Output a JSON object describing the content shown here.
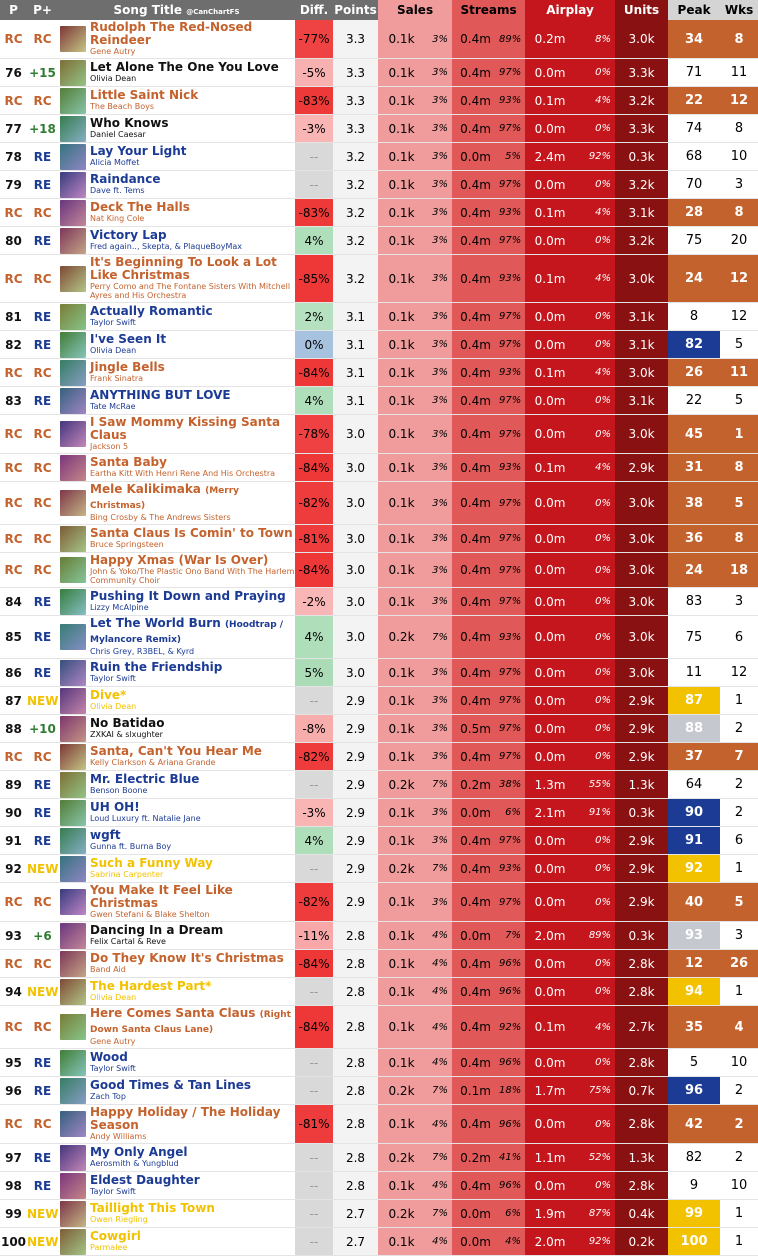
{
  "header": {
    "p": "P",
    "pp": "P+",
    "title": "Song Title",
    "handle": "@CanChartFS",
    "diff": "Diff.",
    "points": "Points",
    "sales": "Sales",
    "streams": "Streams",
    "airplay": "Airplay",
    "units": "Units",
    "peak": "Peak",
    "wks": "Wks"
  },
  "rows": [
    {
      "p": "RC",
      "pp": "RC",
      "title": "Rudolph The Red-Nosed Reindeer",
      "artist": "Gene Autry",
      "diff": "-77%",
      "pts": "3.3",
      "s": "0.1k",
      "sp": "3%",
      "st": "0.4m",
      "stp": "89%",
      "a": "0.2m",
      "ap": "8%",
      "u": "3.0k",
      "pk": "34",
      "wk": "8"
    },
    {
      "p": "76",
      "pp": "+15",
      "title": "Let Alone The One You Love",
      "artist": "Olivia Dean",
      "diff": "-5%",
      "pts": "3.3",
      "s": "0.1k",
      "sp": "3%",
      "st": "0.4m",
      "stp": "97%",
      "a": "0.0m",
      "ap": "0%",
      "u": "3.3k",
      "pk": "71",
      "wk": "11"
    },
    {
      "p": "RC",
      "pp": "RC",
      "title": "Little Saint Nick",
      "artist": "The Beach Boys",
      "diff": "-83%",
      "pts": "3.3",
      "s": "0.1k",
      "sp": "3%",
      "st": "0.4m",
      "stp": "93%",
      "a": "0.1m",
      "ap": "4%",
      "u": "3.2k",
      "pk": "22",
      "wk": "12"
    },
    {
      "p": "77",
      "pp": "+18",
      "title": "Who Knows",
      "artist": "Daniel Caesar",
      "diff": "-3%",
      "pts": "3.3",
      "s": "0.1k",
      "sp": "3%",
      "st": "0.4m",
      "stp": "97%",
      "a": "0.0m",
      "ap": "0%",
      "u": "3.3k",
      "pk": "74",
      "wk": "8"
    },
    {
      "p": "78",
      "pp": "RE",
      "title": "Lay Your Light",
      "artist": "Alicia Moffet",
      "diff": "--",
      "pts": "3.2",
      "s": "0.1k",
      "sp": "3%",
      "st": "0.0m",
      "stp": "5%",
      "a": "2.4m",
      "ap": "92%",
      "u": "0.3k",
      "pk": "68",
      "wk": "10"
    },
    {
      "p": "79",
      "pp": "RE",
      "title": "Raindance",
      "artist": "Dave ft. Tems",
      "diff": "--",
      "pts": "3.2",
      "s": "0.1k",
      "sp": "3%",
      "st": "0.4m",
      "stp": "97%",
      "a": "0.0m",
      "ap": "0%",
      "u": "3.2k",
      "pk": "70",
      "wk": "3"
    },
    {
      "p": "RC",
      "pp": "RC",
      "title": "Deck The Halls",
      "artist": "Nat King Cole",
      "diff": "-83%",
      "pts": "3.2",
      "s": "0.1k",
      "sp": "3%",
      "st": "0.4m",
      "stp": "93%",
      "a": "0.1m",
      "ap": "4%",
      "u": "3.1k",
      "pk": "28",
      "wk": "8"
    },
    {
      "p": "80",
      "pp": "RE",
      "title": "Victory Lap",
      "artist": "Fred again.., Skepta, & PlaqueBoyMax",
      "diff": "4%",
      "pts": "3.2",
      "s": "0.1k",
      "sp": "3%",
      "st": "0.4m",
      "stp": "97%",
      "a": "0.0m",
      "ap": "0%",
      "u": "3.2k",
      "pk": "75",
      "wk": "20"
    },
    {
      "p": "RC",
      "pp": "RC",
      "title": "It's Beginning To Look a Lot Like Christmas",
      "artist": "Perry Como and The Fontane Sisters With Mitchell Ayres and His Orchestra",
      "diff": "-85%",
      "pts": "3.2",
      "s": "0.1k",
      "sp": "3%",
      "st": "0.4m",
      "stp": "93%",
      "a": "0.1m",
      "ap": "4%",
      "u": "3.0k",
      "pk": "24",
      "wk": "12"
    },
    {
      "p": "81",
      "pp": "RE",
      "title": "Actually Romantic",
      "artist": "Taylor Swift",
      "diff": "2%",
      "pts": "3.1",
      "s": "0.1k",
      "sp": "3%",
      "st": "0.4m",
      "stp": "97%",
      "a": "0.0m",
      "ap": "0%",
      "u": "3.1k",
      "pk": "8",
      "wk": "12"
    },
    {
      "p": "82",
      "pp": "RE",
      "title": "I've Seen It",
      "artist": "Olivia Dean",
      "diff": "0%",
      "pts": "3.1",
      "s": "0.1k",
      "sp": "3%",
      "st": "0.4m",
      "stp": "97%",
      "a": "0.0m",
      "ap": "0%",
      "u": "3.1k",
      "pk": "82",
      "wk": "5"
    },
    {
      "p": "RC",
      "pp": "RC",
      "title": "Jingle Bells",
      "artist": "Frank Sinatra",
      "diff": "-84%",
      "pts": "3.1",
      "s": "0.1k",
      "sp": "3%",
      "st": "0.4m",
      "stp": "93%",
      "a": "0.1m",
      "ap": "4%",
      "u": "3.0k",
      "pk": "26",
      "wk": "11"
    },
    {
      "p": "83",
      "pp": "RE",
      "title": "ANYTHING BUT LOVE",
      "artist": "Tate McRae",
      "diff": "4%",
      "pts": "3.1",
      "s": "0.1k",
      "sp": "3%",
      "st": "0.4m",
      "stp": "97%",
      "a": "0.0m",
      "ap": "0%",
      "u": "3.1k",
      "pk": "22",
      "wk": "5"
    },
    {
      "p": "RC",
      "pp": "RC",
      "title": "I Saw Mommy Kissing Santa Claus",
      "artist": "Jackson 5",
      "diff": "-78%",
      "pts": "3.0",
      "s": "0.1k",
      "sp": "3%",
      "st": "0.4m",
      "stp": "97%",
      "a": "0.0m",
      "ap": "0%",
      "u": "3.0k",
      "pk": "45",
      "wk": "1"
    },
    {
      "p": "RC",
      "pp": "RC",
      "title": "Santa Baby",
      "artist": "Eartha Kitt With Henri Rene And His Orchestra",
      "diff": "-84%",
      "pts": "3.0",
      "s": "0.1k",
      "sp": "3%",
      "st": "0.4m",
      "stp": "93%",
      "a": "0.1m",
      "ap": "4%",
      "u": "2.9k",
      "pk": "31",
      "wk": "8"
    },
    {
      "p": "RC",
      "pp": "RC",
      "title": "Mele Kalikimaka",
      "note": "(Merry Christmas)",
      "artist": "Bing Crosby & The Andrews Sisters",
      "diff": "-82%",
      "pts": "3.0",
      "s": "0.1k",
      "sp": "3%",
      "st": "0.4m",
      "stp": "97%",
      "a": "0.0m",
      "ap": "0%",
      "u": "3.0k",
      "pk": "38",
      "wk": "5"
    },
    {
      "p": "RC",
      "pp": "RC",
      "title": "Santa Claus Is Comin' to Town",
      "artist": "Bruce Springsteen",
      "diff": "-81%",
      "pts": "3.0",
      "s": "0.1k",
      "sp": "3%",
      "st": "0.4m",
      "stp": "97%",
      "a": "0.0m",
      "ap": "0%",
      "u": "3.0k",
      "pk": "36",
      "wk": "8"
    },
    {
      "p": "RC",
      "pp": "RC",
      "title": "Happy Xmas (War Is Over)",
      "artist": "John & Yoko/The Plastic Ono Band With The Harlem Community Choir",
      "diff": "-84%",
      "pts": "3.0",
      "s": "0.1k",
      "sp": "3%",
      "st": "0.4m",
      "stp": "97%",
      "a": "0.0m",
      "ap": "0%",
      "u": "3.0k",
      "pk": "24",
      "wk": "18"
    },
    {
      "p": "84",
      "pp": "RE",
      "title": "Pushing It Down and Praying",
      "artist": "Lizzy McAlpine",
      "diff": "-2%",
      "pts": "3.0",
      "s": "0.1k",
      "sp": "3%",
      "st": "0.4m",
      "stp": "97%",
      "a": "0.0m",
      "ap": "0%",
      "u": "3.0k",
      "pk": "83",
      "wk": "3"
    },
    {
      "p": "85",
      "pp": "RE",
      "title": "Let The World Burn",
      "note": "(Hoodtrap / Mylancore Remix)",
      "artist": "Chris Grey, R3BEL, & Kyrd",
      "diff": "4%",
      "pts": "3.0",
      "s": "0.2k",
      "sp": "7%",
      "st": "0.4m",
      "stp": "93%",
      "a": "0.0m",
      "ap": "0%",
      "u": "3.0k",
      "pk": "75",
      "wk": "6"
    },
    {
      "p": "86",
      "pp": "RE",
      "title": "Ruin the Friendship",
      "artist": "Taylor Swift",
      "diff": "5%",
      "pts": "3.0",
      "s": "0.1k",
      "sp": "3%",
      "st": "0.4m",
      "stp": "97%",
      "a": "0.0m",
      "ap": "0%",
      "u": "3.0k",
      "pk": "11",
      "wk": "12"
    },
    {
      "p": "87",
      "pp": "NEW",
      "title": "Dive*",
      "artist": "Olivia Dean",
      "diff": "--",
      "pts": "2.9",
      "s": "0.1k",
      "sp": "3%",
      "st": "0.4m",
      "stp": "97%",
      "a": "0.0m",
      "ap": "0%",
      "u": "2.9k",
      "pk": "87",
      "wk": "1"
    },
    {
      "p": "88",
      "pp": "+10",
      "title": "No Batidao",
      "artist": "ZXKAI & slxughter",
      "diff": "-8%",
      "pts": "2.9",
      "s": "0.1k",
      "sp": "3%",
      "st": "0.5m",
      "stp": "97%",
      "a": "0.0m",
      "ap": "0%",
      "u": "2.9k",
      "pk": "88",
      "wk": "2"
    },
    {
      "p": "RC",
      "pp": "RC",
      "title": "Santa, Can't You Hear Me",
      "artist": "Kelly Clarkson & Ariana Grande",
      "diff": "-82%",
      "pts": "2.9",
      "s": "0.1k",
      "sp": "3%",
      "st": "0.4m",
      "stp": "97%",
      "a": "0.0m",
      "ap": "0%",
      "u": "2.9k",
      "pk": "37",
      "wk": "7"
    },
    {
      "p": "89",
      "pp": "RE",
      "title": "Mr. Electric Blue",
      "artist": "Benson Boone",
      "diff": "--",
      "pts": "2.9",
      "s": "0.2k",
      "sp": "7%",
      "st": "0.2m",
      "stp": "38%",
      "a": "1.3m",
      "ap": "55%",
      "u": "1.3k",
      "pk": "64",
      "wk": "2"
    },
    {
      "p": "90",
      "pp": "RE",
      "title": "UH OH!",
      "artist": "Loud Luxury ft. Natalie Jane",
      "diff": "-3%",
      "pts": "2.9",
      "s": "0.1k",
      "sp": "3%",
      "st": "0.0m",
      "stp": "6%",
      "a": "2.1m",
      "ap": "91%",
      "u": "0.3k",
      "pk": "90",
      "wk": "2"
    },
    {
      "p": "91",
      "pp": "RE",
      "title": "wgft",
      "artist": "Gunna ft. Burna Boy",
      "diff": "4%",
      "pts": "2.9",
      "s": "0.1k",
      "sp": "3%",
      "st": "0.4m",
      "stp": "97%",
      "a": "0.0m",
      "ap": "0%",
      "u": "2.9k",
      "pk": "91",
      "wk": "6"
    },
    {
      "p": "92",
      "pp": "NEW",
      "title": "Such a Funny Way",
      "artist": "Sabrina Carpenter",
      "diff": "--",
      "pts": "2.9",
      "s": "0.2k",
      "sp": "7%",
      "st": "0.4m",
      "stp": "93%",
      "a": "0.0m",
      "ap": "0%",
      "u": "2.9k",
      "pk": "92",
      "wk": "1"
    },
    {
      "p": "RC",
      "pp": "RC",
      "title": "You Make It Feel Like Christmas",
      "artist": "Gwen Stefani & Blake Shelton",
      "diff": "-82%",
      "pts": "2.9",
      "s": "0.1k",
      "sp": "3%",
      "st": "0.4m",
      "stp": "97%",
      "a": "0.0m",
      "ap": "0%",
      "u": "2.9k",
      "pk": "40",
      "wk": "5"
    },
    {
      "p": "93",
      "pp": "+6",
      "title": "Dancing In a Dream",
      "artist": "Felix Cartal & Reve",
      "diff": "-11%",
      "pts": "2.8",
      "s": "0.1k",
      "sp": "4%",
      "st": "0.0m",
      "stp": "7%",
      "a": "2.0m",
      "ap": "89%",
      "u": "0.3k",
      "pk": "93",
      "wk": "3"
    },
    {
      "p": "RC",
      "pp": "RC",
      "title": "Do They Know It's Christmas",
      "artist": "Band Aid",
      "diff": "-84%",
      "pts": "2.8",
      "s": "0.1k",
      "sp": "4%",
      "st": "0.4m",
      "stp": "96%",
      "a": "0.0m",
      "ap": "0%",
      "u": "2.8k",
      "pk": "12",
      "wk": "26"
    },
    {
      "p": "94",
      "pp": "NEW",
      "title": "The Hardest Part*",
      "artist": "Olivia Dean",
      "diff": "--",
      "pts": "2.8",
      "s": "0.1k",
      "sp": "4%",
      "st": "0.4m",
      "stp": "96%",
      "a": "0.0m",
      "ap": "0%",
      "u": "2.8k",
      "pk": "94",
      "wk": "1"
    },
    {
      "p": "RC",
      "pp": "RC",
      "title": "Here Comes Santa Claus",
      "note": "(Right Down Santa Claus Lane)",
      "artist": "Gene Autry",
      "diff": "-84%",
      "pts": "2.8",
      "s": "0.1k",
      "sp": "4%",
      "st": "0.4m",
      "stp": "92%",
      "a": "0.1m",
      "ap": "4%",
      "u": "2.7k",
      "pk": "35",
      "wk": "4"
    },
    {
      "p": "95",
      "pp": "RE",
      "title": "Wood",
      "artist": "Taylor Swift",
      "diff": "--",
      "pts": "2.8",
      "s": "0.1k",
      "sp": "4%",
      "st": "0.4m",
      "stp": "96%",
      "a": "0.0m",
      "ap": "0%",
      "u": "2.8k",
      "pk": "5",
      "wk": "10"
    },
    {
      "p": "96",
      "pp": "RE",
      "title": "Good Times & Tan Lines",
      "artist": "Zach Top",
      "diff": "--",
      "pts": "2.8",
      "s": "0.2k",
      "sp": "7%",
      "st": "0.1m",
      "stp": "18%",
      "a": "1.7m",
      "ap": "75%",
      "u": "0.7k",
      "pk": "96",
      "wk": "2"
    },
    {
      "p": "RC",
      "pp": "RC",
      "title": "Happy Holiday / The Holiday Season",
      "artist": "Andy Williams",
      "diff": "-81%",
      "pts": "2.8",
      "s": "0.1k",
      "sp": "4%",
      "st": "0.4m",
      "stp": "96%",
      "a": "0.0m",
      "ap": "0%",
      "u": "2.8k",
      "pk": "42",
      "wk": "2"
    },
    {
      "p": "97",
      "pp": "RE",
      "title": "My Only Angel",
      "artist": "Aerosmith & Yungblud",
      "diff": "--",
      "pts": "2.8",
      "s": "0.2k",
      "sp": "7%",
      "st": "0.2m",
      "stp": "41%",
      "a": "1.1m",
      "ap": "52%",
      "u": "1.3k",
      "pk": "82",
      "wk": "2"
    },
    {
      "p": "98",
      "pp": "RE",
      "title": "Eldest Daughter",
      "artist": "Taylor Swift",
      "diff": "--",
      "pts": "2.8",
      "s": "0.1k",
      "sp": "4%",
      "st": "0.4m",
      "stp": "96%",
      "a": "0.0m",
      "ap": "0%",
      "u": "2.8k",
      "pk": "9",
      "wk": "10"
    },
    {
      "p": "99",
      "pp": "NEW",
      "title": "Taillight This Town",
      "artist": "Owen Riegling",
      "diff": "--",
      "pts": "2.7",
      "s": "0.2k",
      "sp": "7%",
      "st": "0.0m",
      "stp": "6%",
      "a": "1.9m",
      "ap": "87%",
      "u": "0.4k",
      "pk": "99",
      "wk": "1"
    },
    {
      "p": "100",
      "pp": "NEW",
      "title": "Cowgirl",
      "artist": "Parmalee",
      "diff": "--",
      "pts": "2.7",
      "s": "0.1k",
      "sp": "4%",
      "st": "0.0m",
      "stp": "4%",
      "a": "2.0m",
      "ap": "92%",
      "u": "0.2k",
      "pk": "100",
      "wk": "1"
    }
  ]
}
